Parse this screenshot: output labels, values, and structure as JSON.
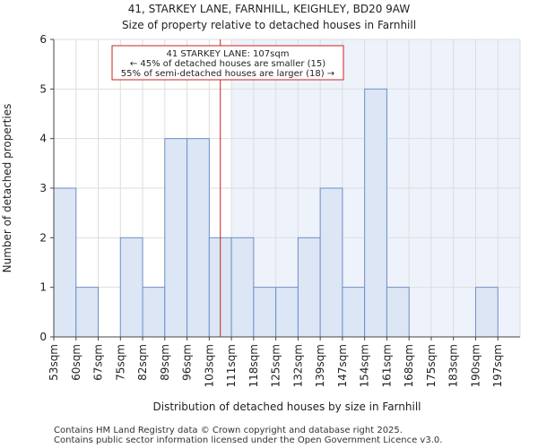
{
  "chart_data": {
    "type": "bar",
    "title_line1": "41, STARKEY LANE, FARNHILL, KEIGHLEY, BD20 9AW",
    "title_line2": "Size of property relative to detached houses in Farnhill",
    "xlabel": "Distribution of detached houses by size in Farnhill",
    "ylabel": "Number of detached properties",
    "categories": [
      "53sqm",
      "60sqm",
      "67sqm",
      "75sqm",
      "82sqm",
      "89sqm",
      "96sqm",
      "103sqm",
      "111sqm",
      "118sqm",
      "125sqm",
      "132sqm",
      "139sqm",
      "147sqm",
      "154sqm",
      "161sqm",
      "168sqm",
      "175sqm",
      "183sqm",
      "190sqm",
      "197sqm"
    ],
    "values": [
      3,
      1,
      0,
      2,
      1,
      4,
      4,
      2,
      2,
      1,
      1,
      2,
      3,
      1,
      5,
      1,
      0,
      0,
      0,
      1,
      0
    ],
    "ylim": [
      0,
      6
    ],
    "yticks": [
      0,
      1,
      2,
      3,
      4,
      5,
      6
    ],
    "marker_value_sqm": 107,
    "highlight_from_category": "111sqm",
    "annotation": {
      "line1": "41 STARKEY LANE: 107sqm",
      "line2": "← 45% of detached houses are smaller (15)",
      "line3": "55% of semi-detached houses are larger (18) →"
    },
    "footer_line1": "Contains HM Land Registry data © Crown copyright and database right 2025.",
    "footer_line2": "Contains public sector information licensed under the Open Government Licence v3.0.",
    "colors": {
      "bar_fill": "#dce6f5",
      "bar_stroke": "#6f8fc9",
      "highlight_bg": "#eef2fb",
      "marker": "#cc2222",
      "grid": "#dddddd"
    }
  }
}
